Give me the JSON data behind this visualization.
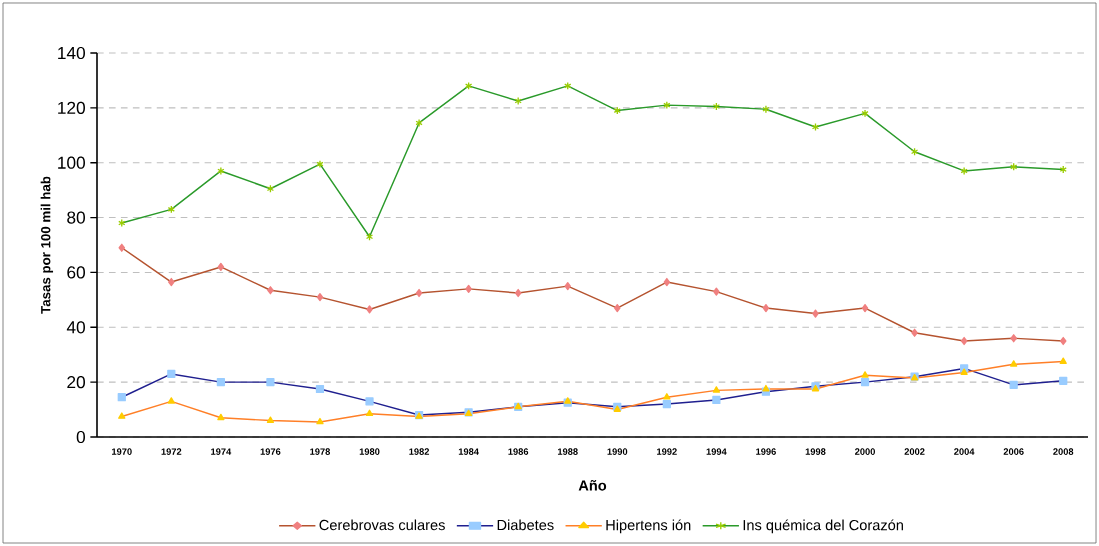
{
  "chart_data": {
    "type": "line",
    "xlabel": "Año",
    "ylabel": "Tasas por 100 mil hab",
    "categories": [
      "1970",
      "1972",
      "1974",
      "1976",
      "1978",
      "1980",
      "1982",
      "1984",
      "1986",
      "1988",
      "1990",
      "1992",
      "1994",
      "1996",
      "1998",
      "2000",
      "2002",
      "2004",
      "2006",
      "2008"
    ],
    "series": [
      {
        "name": "Cerebrovas culares",
        "color": "#b5532f",
        "marker": "diamond",
        "values": [
          69,
          56.5,
          62,
          53.5,
          51,
          46.5,
          52.5,
          54,
          52.5,
          55,
          47,
          56.5,
          53,
          47,
          45,
          47,
          38,
          35,
          36,
          35
        ]
      },
      {
        "name": "Diabetes",
        "color": "#1f1f8f",
        "marker": "square",
        "values": [
          14.5,
          23,
          20,
          20,
          17.5,
          13,
          8,
          9,
          11,
          12.5,
          11,
          12,
          13.5,
          16.5,
          18.5,
          20,
          22,
          25,
          19,
          20.5
        ]
      },
      {
        "name": "Hipertens ión",
        "color": "#ff7f27",
        "marker": "triangle",
        "values": [
          7.5,
          13,
          7,
          6,
          5.5,
          8.5,
          7.5,
          8.5,
          11,
          13,
          10,
          14.5,
          17,
          17.5,
          17.5,
          22.5,
          21.5,
          23.5,
          26.5,
          27.5
        ]
      },
      {
        "name": "Ins quémica del Corazón",
        "color": "#2a9a2a",
        "marker": "cross",
        "values": [
          78,
          83,
          97,
          90.5,
          99.5,
          73,
          114.5,
          128,
          122.5,
          128,
          119,
          121,
          120.5,
          119.5,
          113,
          118,
          104,
          97,
          98.5,
          97.5
        ]
      }
    ],
    "ylim": [
      0,
      140
    ],
    "yticks": [
      0,
      20,
      40,
      60,
      80,
      100,
      120,
      140
    ],
    "grid": "y",
    "legend": "bottom"
  }
}
